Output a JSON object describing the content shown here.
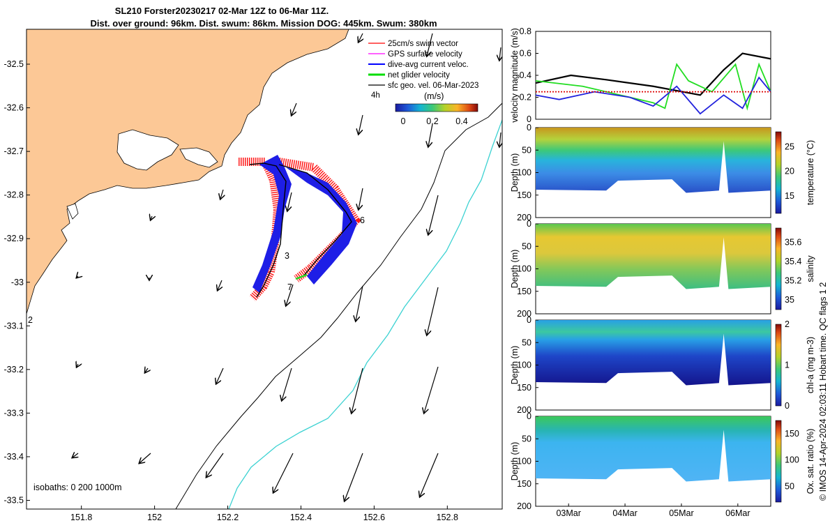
{
  "title_line1": "SL210 Forster20230217 02-Mar 12Z to 06-Mar 11Z.",
  "title_line2": "Dist. over ground: 96km. Dist. swum: 86km. Mission DOG: 445km. Swum: 380km",
  "map": {
    "x_ticks": [
      "151.8",
      "152",
      "152.2",
      "152.4",
      "152.6",
      "152.8"
    ],
    "y_ticks": [
      "-32.5",
      "-32.6",
      "-32.7",
      "-32.8",
      "-32.9",
      "-33",
      "-33.1",
      "-33.2",
      "-33.3",
      "-33.4",
      "-33.5"
    ],
    "xlim": [
      151.65,
      152.95
    ],
    "ylim": [
      -33.52,
      -32.42
    ],
    "isobaths_label": "isobaths: 0   200  1000m",
    "legend": [
      {
        "label": "25cm/s swim vector",
        "color": "#ff0000"
      },
      {
        "label": "GPS surface velocity",
        "color": "#ff00ff"
      },
      {
        "label": "dive-avg current veloc.",
        "color": "#0000ff"
      },
      {
        "label": "net glider velocity",
        "color": "#00dd00"
      },
      {
        "label": "sfc geo. vel. 06-Mar-2023",
        "color": "#000000"
      }
    ],
    "scale_label": "4h",
    "colorbar_title": "(m/s)",
    "colorbar_ticks": [
      "0",
      "0.2",
      "0.4"
    ],
    "day_markers": [
      "3",
      "6",
      "7"
    ],
    "corner_label": "2"
  },
  "chart_data": [
    {
      "type": "line",
      "ylabel": "velocity magnitude (m/s)",
      "ylim": [
        0,
        0.8
      ],
      "y_ticks": [
        "0",
        "0.2",
        "0.4",
        "0.6",
        "0.8"
      ],
      "x_days": [
        "03Mar",
        "04Mar",
        "05Mar",
        "06Mar"
      ],
      "series": [
        {
          "color": "#000000",
          "x": [
            0,
            0.15,
            0.3,
            0.5,
            0.7,
            0.8,
            0.88,
            1.0
          ],
          "values": [
            0.33,
            0.4,
            0.36,
            0.3,
            0.22,
            0.45,
            0.6,
            0.55
          ]
        },
        {
          "color": "#22dd22",
          "x": [
            0,
            0.2,
            0.4,
            0.5,
            0.55,
            0.6,
            0.65,
            0.75,
            0.85,
            0.9,
            0.95,
            1.0
          ],
          "values": [
            0.35,
            0.3,
            0.2,
            0.15,
            0.1,
            0.5,
            0.35,
            0.25,
            0.5,
            0.1,
            0.5,
            0.25
          ]
        },
        {
          "color": "#2222dd",
          "x": [
            0,
            0.1,
            0.25,
            0.4,
            0.5,
            0.6,
            0.7,
            0.8,
            0.88,
            0.95,
            1.0
          ],
          "values": [
            0.22,
            0.18,
            0.25,
            0.2,
            0.12,
            0.3,
            0.05,
            0.22,
            0.1,
            0.38,
            0.25
          ]
        },
        {
          "color": "#dd0000",
          "x": [
            0,
            1.0
          ],
          "values": [
            0.25,
            0.25
          ]
        }
      ]
    },
    {
      "type": "heatmap",
      "ylabel": "Depth (m)",
      "y_ticks": [
        "0",
        "50",
        "100",
        "150",
        "200"
      ],
      "cbar_label": "temperature (°C)",
      "cbar_ticks": [
        "15",
        "20",
        "25"
      ],
      "x_days": [
        "03Mar",
        "04Mar",
        "05Mar",
        "06Mar"
      ]
    },
    {
      "type": "heatmap",
      "ylabel": "Depth (m)",
      "y_ticks": [
        "0",
        "50",
        "100",
        "150",
        "200"
      ],
      "cbar_label": "salinity",
      "cbar_ticks": [
        "35",
        "35.2",
        "35.4",
        "35.6"
      ],
      "x_days": [
        "03Mar",
        "04Mar",
        "05Mar",
        "06Mar"
      ]
    },
    {
      "type": "heatmap",
      "ylabel": "Depth (m)",
      "y_ticks": [
        "0",
        "50",
        "100",
        "150",
        "200"
      ],
      "cbar_label": "chl-a (mg m-3)",
      "cbar_ticks": [
        "0",
        "1",
        "2"
      ],
      "x_days": [
        "03Mar",
        "04Mar",
        "05Mar",
        "06Mar"
      ]
    },
    {
      "type": "heatmap",
      "ylabel": "Depth (m)",
      "y_ticks": [
        "0",
        "50",
        "100",
        "150",
        "200"
      ],
      "cbar_label": "Ox. sat. ratio (%)",
      "cbar_ticks": [
        "50",
        "100",
        "150"
      ],
      "x_days": [
        "03Mar",
        "04Mar",
        "05Mar",
        "06Mar"
      ]
    }
  ],
  "side_note": "© IMOS 14-Apr-2024 02:03:11 Hobart time. QC flags 1  2"
}
